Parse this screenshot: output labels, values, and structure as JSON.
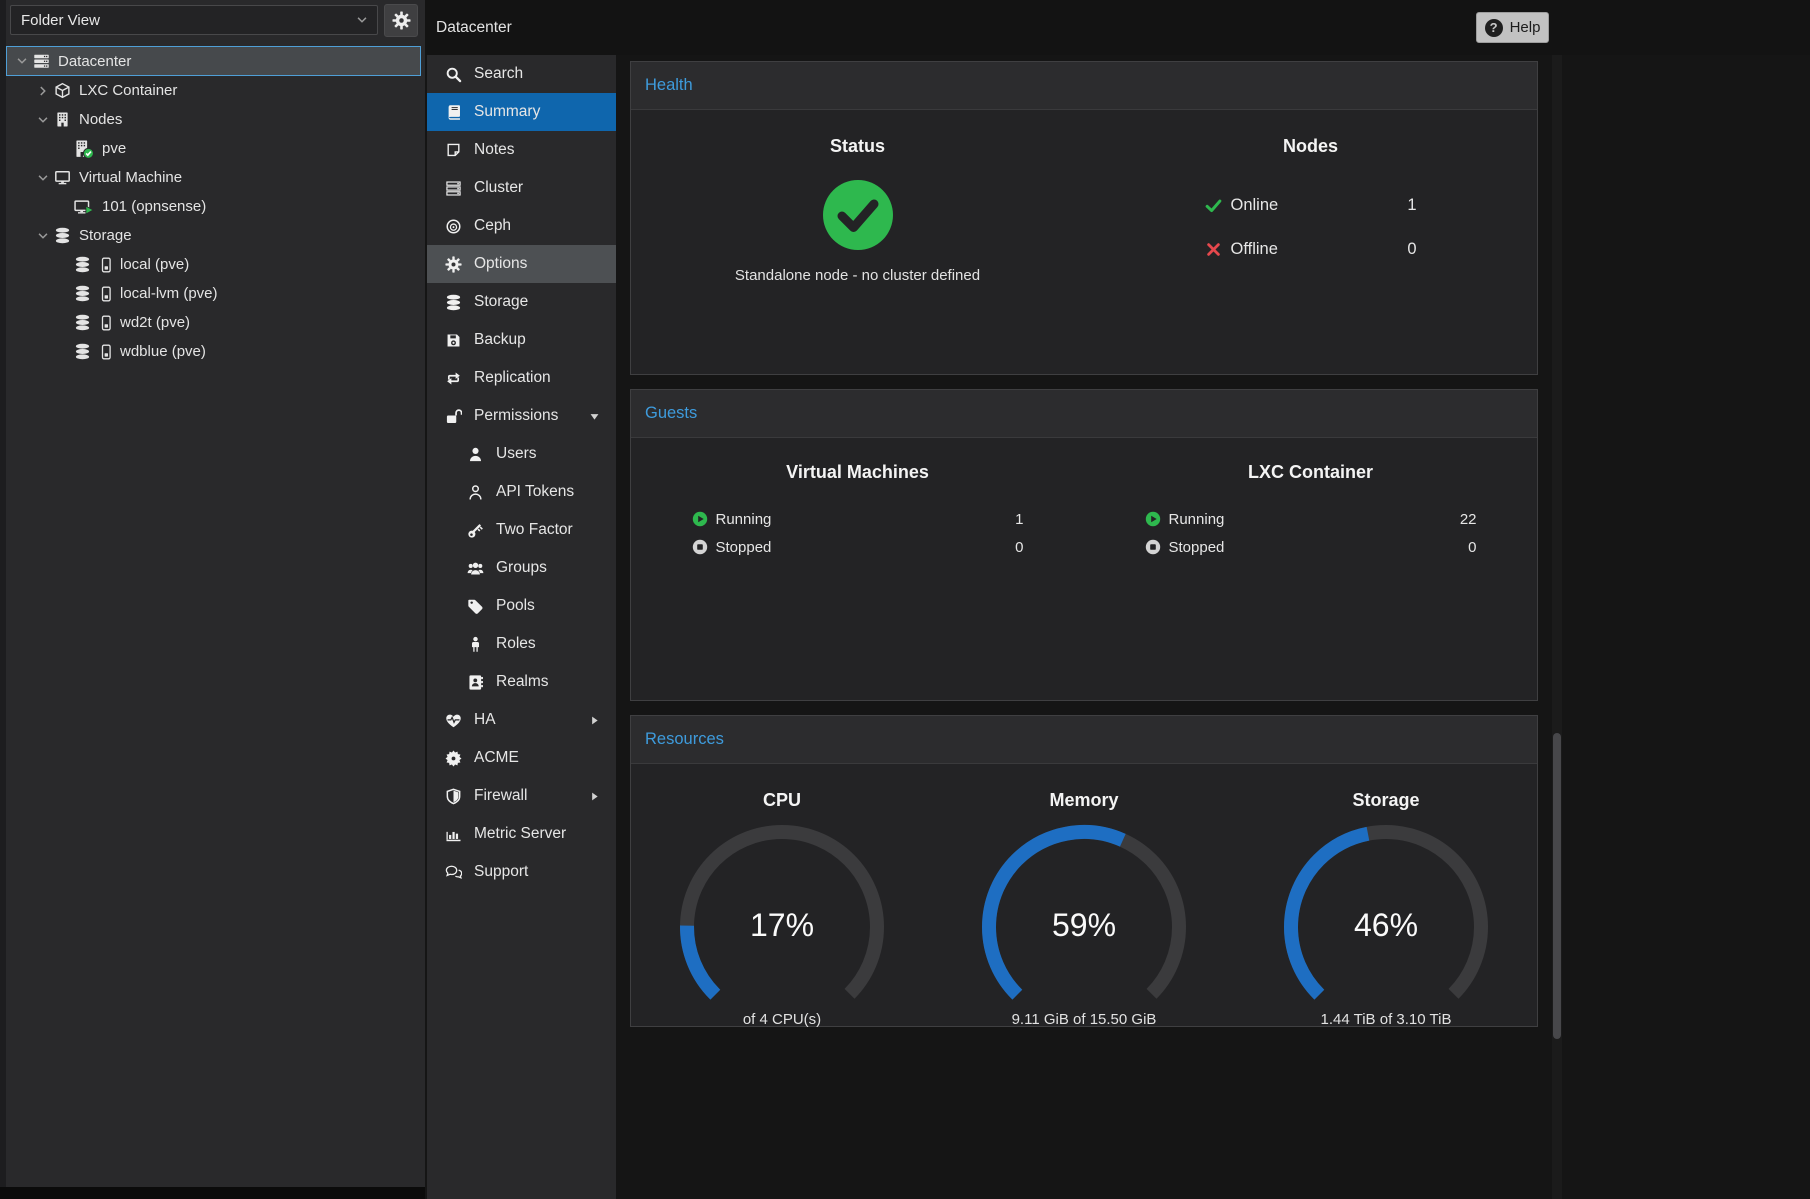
{
  "app": {
    "topbar_title": "Datacenter",
    "help_label": "Help"
  },
  "colors": {
    "selection_blue": "#0f66ad",
    "selection_border_blue": "#4f9fd7",
    "panel_title_blue": "#3e9bdc",
    "ok_green": "#2eb84e",
    "error_red": "#e5484d",
    "gauge_blue": "#1e6ec2",
    "gauge_track": "#3b3b3d"
  },
  "sidebar": {
    "view_label": "Folder View",
    "tree": [
      {
        "label": "Datacenter",
        "icon": "server",
        "level": 0,
        "expander": "down",
        "selected": true
      },
      {
        "label": "LXC Container",
        "icon": "cube",
        "level": 1,
        "expander": "right"
      },
      {
        "label": "Nodes",
        "icon": "building",
        "level": 1,
        "expander": "down"
      },
      {
        "label": "pve",
        "icon": "building-check",
        "level": 2
      },
      {
        "label": "Virtual Machine",
        "icon": "monitor",
        "level": 1,
        "expander": "down"
      },
      {
        "label": "101 (opnsense)",
        "icon": "monitor-play",
        "level": 2
      },
      {
        "label": "Storage",
        "icon": "database",
        "level": 1,
        "expander": "down"
      },
      {
        "label": "local (pve)",
        "icon": "database-drive",
        "level": 2
      },
      {
        "label": "local-lvm (pve)",
        "icon": "database-drive",
        "level": 2
      },
      {
        "label": "wd2t (pve)",
        "icon": "database-drive",
        "level": 2
      },
      {
        "label": "wdblue (pve)",
        "icon": "database-drive",
        "level": 2
      }
    ]
  },
  "nav": {
    "items": [
      {
        "label": "Search",
        "icon": "search"
      },
      {
        "label": "Summary",
        "icon": "book",
        "selected": true
      },
      {
        "label": "Notes",
        "icon": "note"
      },
      {
        "label": "Cluster",
        "icon": "cluster"
      },
      {
        "label": "Ceph",
        "icon": "ceph"
      },
      {
        "label": "Options",
        "icon": "gear",
        "hover": true
      },
      {
        "label": "Storage",
        "icon": "database"
      },
      {
        "label": "Backup",
        "icon": "floppy"
      },
      {
        "label": "Replication",
        "icon": "replication"
      },
      {
        "label": "Permissions",
        "icon": "unlock",
        "caret": "down"
      },
      {
        "label": "Users",
        "icon": "user",
        "sub": true
      },
      {
        "label": "API Tokens",
        "icon": "user-o",
        "sub": true
      },
      {
        "label": "Two Factor",
        "icon": "key",
        "sub": true
      },
      {
        "label": "Groups",
        "icon": "users",
        "sub": true
      },
      {
        "label": "Pools",
        "icon": "tag",
        "sub": true
      },
      {
        "label": "Roles",
        "icon": "male",
        "sub": true
      },
      {
        "label": "Realms",
        "icon": "address-book",
        "sub": true
      },
      {
        "label": "HA",
        "icon": "heartbeat",
        "caret": "right"
      },
      {
        "label": "ACME",
        "icon": "seal"
      },
      {
        "label": "Firewall",
        "icon": "shield",
        "caret": "right"
      },
      {
        "label": "Metric Server",
        "icon": "chart"
      },
      {
        "label": "Support",
        "icon": "comments"
      }
    ]
  },
  "panels": {
    "health": {
      "title": "Health",
      "status_heading": "Status",
      "status_message": "Standalone node - no cluster defined",
      "nodes_heading": "Nodes",
      "node_rows": [
        {
          "icon": "check",
          "label": "Online",
          "value": "1"
        },
        {
          "icon": "cross",
          "label": "Offline",
          "value": "0"
        }
      ]
    },
    "guests": {
      "title": "Guests",
      "columns": [
        {
          "heading": "Virtual Machines",
          "rows": [
            {
              "icon": "play-circle",
              "label": "Running",
              "value": "1"
            },
            {
              "icon": "stop-circle",
              "label": "Stopped",
              "value": "0"
            }
          ]
        },
        {
          "heading": "LXC Container",
          "rows": [
            {
              "icon": "play-circle",
              "label": "Running",
              "value": "22"
            },
            {
              "icon": "stop-circle",
              "label": "Stopped",
              "value": "0"
            }
          ]
        }
      ]
    },
    "resources": {
      "title": "Resources"
    }
  },
  "chart_data": [
    {
      "type": "gauge",
      "title": "CPU",
      "value_pct": 17,
      "value_label": "17%",
      "sublabel": "of 4 CPU(s)",
      "arc_span_deg": 270,
      "color": "#1e6ec2"
    },
    {
      "type": "gauge",
      "title": "Memory",
      "value_pct": 59,
      "value_label": "59%",
      "sublabel": "9.11 GiB of 15.50 GiB",
      "arc_span_deg": 270,
      "color": "#1e6ec2"
    },
    {
      "type": "gauge",
      "title": "Storage",
      "value_pct": 46,
      "value_label": "46%",
      "sublabel": "1.44 TiB of 3.10 TiB",
      "arc_span_deg": 270,
      "color": "#1e6ec2"
    }
  ]
}
